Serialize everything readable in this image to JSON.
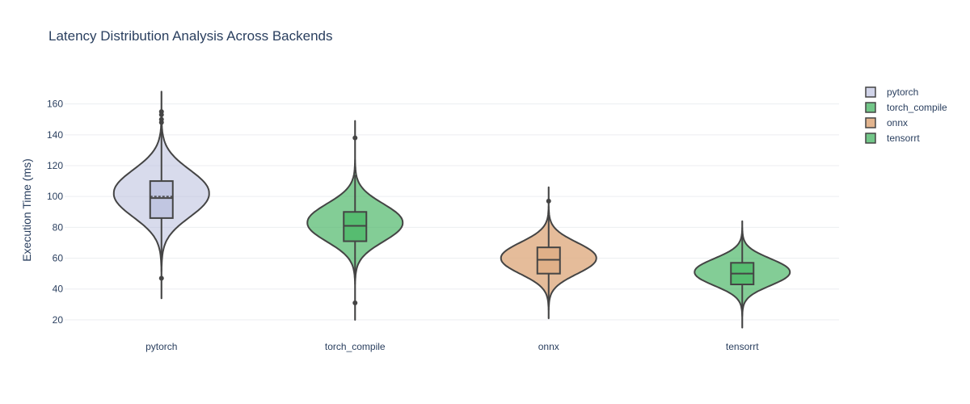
{
  "chart_data": {
    "type": "violin",
    "title": "Latency Distribution Analysis Across Backends",
    "xlabel": "",
    "ylabel": "Execution Time (ms)",
    "ylim": [
      10,
      175
    ],
    "yticks": [
      20,
      40,
      60,
      80,
      100,
      120,
      140,
      160
    ],
    "grid": true,
    "legend_position": "top-right",
    "series": [
      {
        "name": "pytorch",
        "color": "#b8bddd",
        "opacity": 0.55,
        "min": 34,
        "max": 168,
        "q1": 86,
        "median": 99,
        "mean": 100,
        "q3": 110,
        "whisker_low": 60,
        "whisker_high": 143,
        "peak": 102,
        "sd": 15,
        "outliers": [
          47,
          148,
          150,
          153,
          155
        ]
      },
      {
        "name": "torch_compile",
        "color": "#4fb86a",
        "opacity": 0.7,
        "min": 20,
        "max": 149,
        "q1": 71,
        "median": 81,
        "mean": 81,
        "q3": 90,
        "whisker_low": 48,
        "whisker_high": 114,
        "peak": 83,
        "sd": 12,
        "outliers": [
          31,
          138
        ]
      },
      {
        "name": "onnx",
        "color": "#e0b088",
        "opacity": 0.85,
        "min": 21,
        "max": 106,
        "q1": 50,
        "median": 59,
        "mean": 59,
        "q3": 67,
        "whisker_low": 30,
        "whisker_high": 88,
        "peak": 60,
        "sd": 10,
        "outliers": [
          97
        ]
      },
      {
        "name": "tensorrt",
        "color": "#4fb86a",
        "opacity": 0.7,
        "min": 15,
        "max": 84,
        "q1": 43,
        "median": 50,
        "mean": 50,
        "q3": 57,
        "whisker_low": 23,
        "whisker_high": 76,
        "peak": 51,
        "sd": 8.5,
        "outliers": []
      }
    ]
  }
}
